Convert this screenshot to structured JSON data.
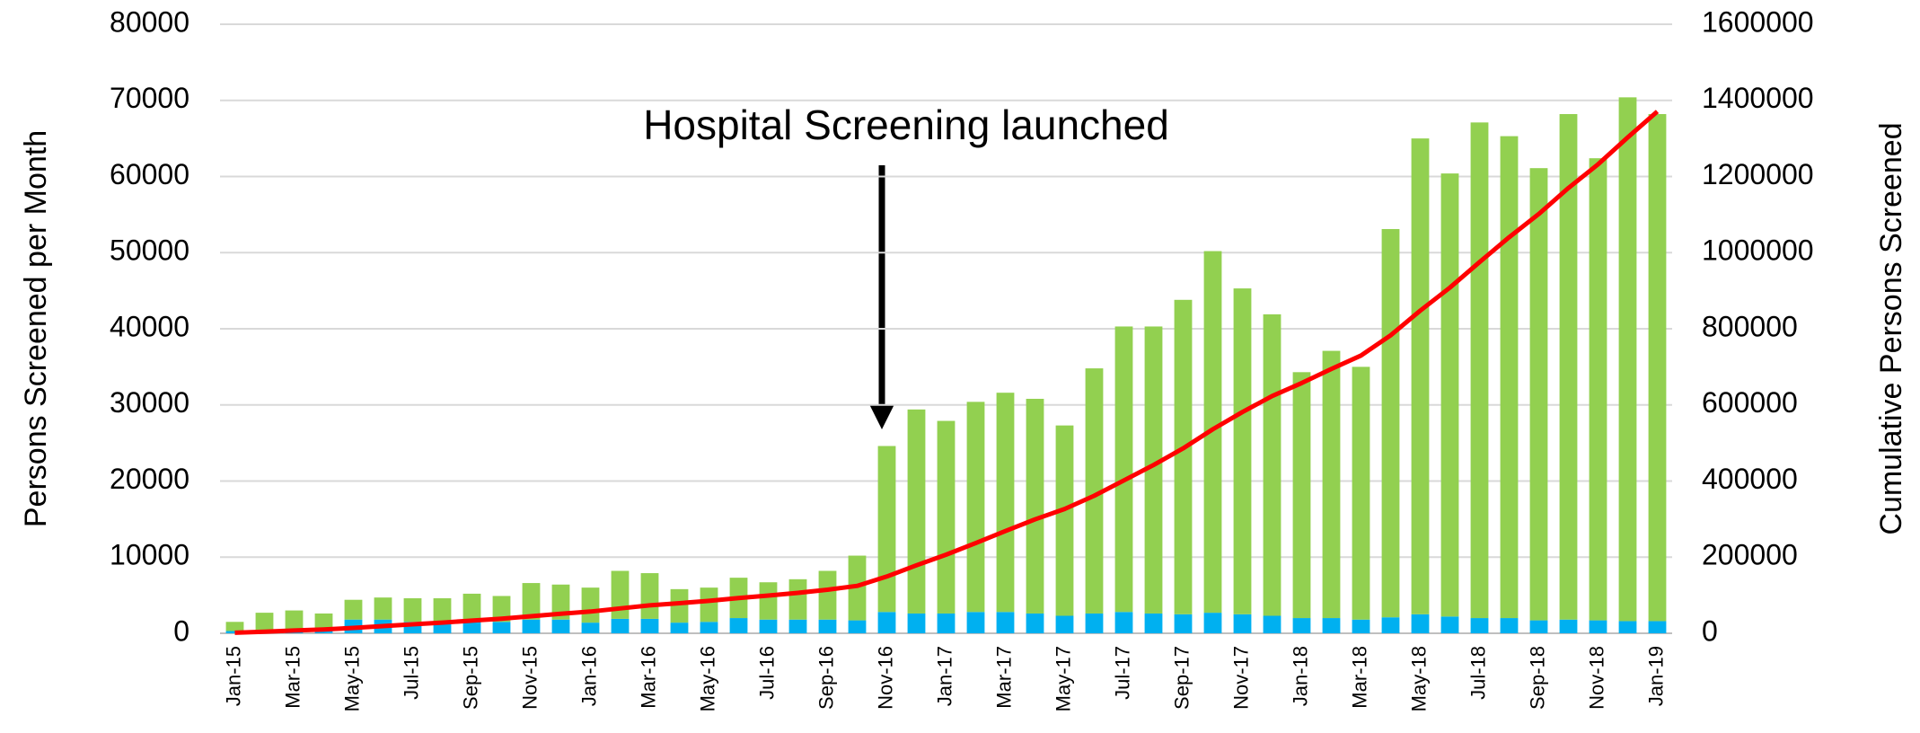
{
  "chart_data": {
    "type": "bar",
    "annotation": "Hospital Screening launched",
    "y_label": "Persons Screened per Month",
    "y2_label": "Cumulative Persons Screened",
    "categories": [
      "Jan-15",
      null,
      "Mar-15",
      null,
      "May-15",
      null,
      "Jul-15",
      null,
      "Sep-15",
      null,
      "Nov-15",
      null,
      "Jan-16",
      null,
      "Mar-16",
      null,
      "May-16",
      null,
      "Jul-16",
      null,
      "Sep-16",
      null,
      "Nov-16",
      null,
      "Jan-17",
      null,
      "Mar-17",
      null,
      "May-17",
      null,
      "Jul-17",
      null,
      "Sep-17",
      null,
      "Nov-17",
      null,
      "Jan-18",
      null,
      "Mar-18",
      null,
      "May-18",
      null,
      "Jul-18",
      null,
      "Sep-18",
      null,
      "Nov-18",
      null,
      "Jan-19"
    ],
    "stacked": true,
    "series": [
      {
        "color": "#00b0f0",
        "values": [
          300,
          400,
          500,
          600,
          1800,
          1800,
          1500,
          1400,
          1600,
          1500,
          1800,
          1800,
          1400,
          1900,
          1900,
          1400,
          1500,
          2000,
          1800,
          1800,
          1800,
          1700,
          2800,
          2600,
          2600,
          2800,
          2800,
          2600,
          2300,
          2600,
          2800,
          2600,
          2500,
          2700,
          2500,
          2300,
          2000,
          2000,
          1800,
          2100,
          2500,
          2200,
          2000,
          2000,
          1700,
          1800,
          1700,
          1600,
          1600
        ]
      },
      {
        "color": "#92d050",
        "values": [
          1200,
          2300,
          2500,
          2000,
          2600,
          2900,
          3100,
          3200,
          3600,
          3400,
          4800,
          4600,
          4600,
          6300,
          6000,
          4400,
          4500,
          5300,
          4900,
          5300,
          6400,
          8500,
          21800,
          26800,
          25300,
          27600,
          28800,
          28200,
          25000,
          32200,
          37500,
          37700,
          41300,
          47500,
          42800,
          39600,
          32300,
          35100,
          33200,
          51000,
          62500,
          58200,
          65100,
          63300,
          59400,
          66400,
          60700,
          68800,
          66600
        ]
      },
      {
        "color": "#ff0000",
        "axis": "y2",
        "line": true,
        "values": [
          1500,
          4200,
          7200,
          9800,
          14200,
          18900,
          23500,
          28100,
          33300,
          38200,
          44800,
          51200,
          57200,
          65400,
          73300,
          79100,
          85100,
          92400,
          99100,
          106200,
          114400,
          124600,
          149200,
          178600,
          206500,
          236900,
          268500,
          299300,
          326600,
          361400,
          401700,
          442000,
          485800,
          536000,
          581300,
          623200,
          657500,
          694600,
          729600,
          782700,
          847700,
          908100,
          975200,
          1040500,
          1101600,
          1169800,
          1232200,
          1302600,
          1370800
        ]
      }
    ],
    "ylim": [
      0,
      80000
    ],
    "yticks": [
      0,
      10000,
      20000,
      30000,
      40000,
      50000,
      60000,
      70000,
      80000
    ],
    "y2lim": [
      0,
      1600000
    ],
    "y2ticks": [
      0,
      200000,
      400000,
      600000,
      800000,
      1000000,
      1200000,
      1400000,
      1600000
    ],
    "grid": true
  }
}
